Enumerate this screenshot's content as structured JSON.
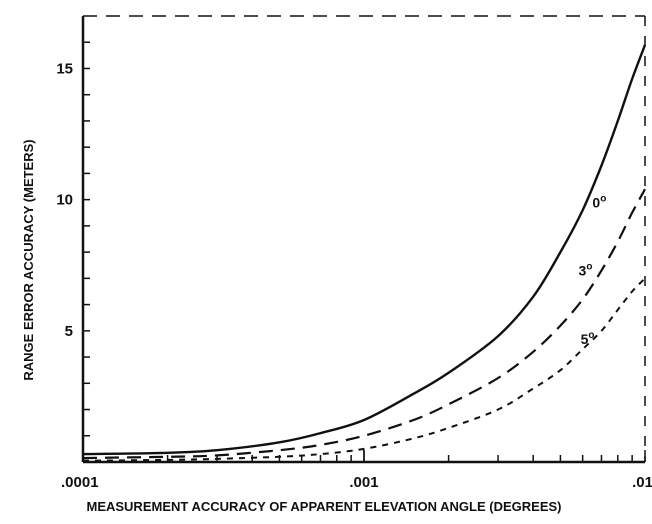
{
  "chart_data": {
    "type": "line",
    "title": "",
    "xlabel": "MEASUREMENT ACCURACY OF APPARENT ELEVATION ANGLE (DEGREES)",
    "ylabel": "RANGE ERROR ACCURACY (METERS)",
    "xscale": "log",
    "xlim": [
      0.0001,
      0.01
    ],
    "ylim": [
      0,
      17
    ],
    "grid": false,
    "x_tick_labels": [
      {
        "value": 0.0001,
        "label": ".0001"
      },
      {
        "value": 0.001,
        "label": ".001"
      },
      {
        "value": 0.01,
        "label": ".01"
      }
    ],
    "y_tick_labels": [
      {
        "value": 5,
        "label": "5"
      },
      {
        "value": 10,
        "label": "10"
      },
      {
        "value": 15,
        "label": "15"
      }
    ],
    "series": [
      {
        "name": "0°",
        "label_main": "0",
        "label_sup": "o",
        "label_value": 0.0065,
        "label_y": 9.7,
        "style": "solid",
        "x": [
          0.0001,
          0.0002,
          0.0003,
          0.0005,
          0.0007,
          0.001,
          0.0015,
          0.002,
          0.003,
          0.004,
          0.005,
          0.006,
          0.007,
          0.008,
          0.009,
          0.01
        ],
        "y": [
          0.3,
          0.35,
          0.45,
          0.75,
          1.1,
          1.6,
          2.6,
          3.4,
          4.8,
          6.3,
          8.0,
          9.6,
          11.3,
          13.0,
          14.6,
          15.9
        ]
      },
      {
        "name": "3°",
        "label_main": "3",
        "label_sup": "o",
        "label_value": 0.0058,
        "label_y": 7.1,
        "style": "dashed",
        "x": [
          0.0001,
          0.0002,
          0.0003,
          0.0005,
          0.0007,
          0.001,
          0.0015,
          0.002,
          0.003,
          0.004,
          0.005,
          0.006,
          0.007,
          0.008,
          0.009,
          0.01
        ],
        "y": [
          0.15,
          0.2,
          0.25,
          0.45,
          0.65,
          1.0,
          1.6,
          2.2,
          3.2,
          4.2,
          5.2,
          6.2,
          7.3,
          8.4,
          9.5,
          10.4
        ]
      },
      {
        "name": "5°",
        "label_main": "5",
        "label_sup": "o",
        "label_value": 0.0059,
        "label_y": 4.5,
        "style": "short-dashed",
        "x": [
          0.0001,
          0.0002,
          0.0003,
          0.0005,
          0.0007,
          0.001,
          0.0015,
          0.002,
          0.003,
          0.004,
          0.005,
          0.006,
          0.007,
          0.008,
          0.009,
          0.01
        ],
        "y": [
          0.05,
          0.08,
          0.12,
          0.2,
          0.3,
          0.5,
          0.9,
          1.3,
          2.0,
          2.8,
          3.5,
          4.3,
          5.0,
          5.8,
          6.5,
          7.0
        ]
      }
    ]
  }
}
